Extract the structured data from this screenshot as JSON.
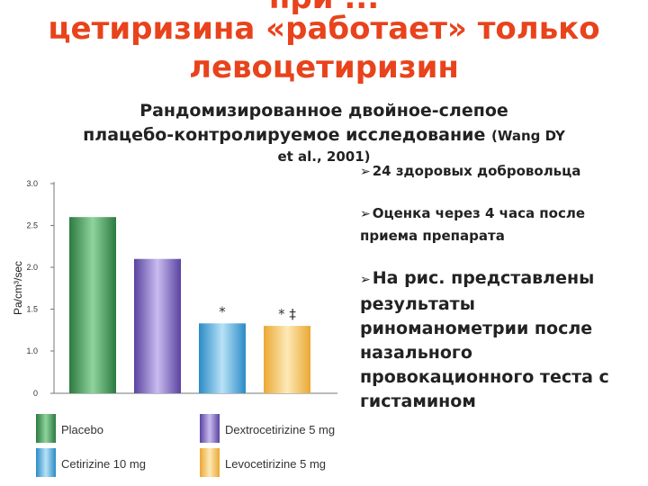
{
  "slide": {
    "title_line_partial": "при    ...",
    "title_line_1": "цетиризина «работает» только",
    "title_line_2": "левоцетиризин",
    "subtitle_line_1": "Рандомизированное двойное-слепое",
    "subtitle_line_2": "плацебо-контролируемое исследование",
    "citation_part_1": "(Wang DY",
    "citation_part_2": "et al., 2001)",
    "bullets": [
      "24 здоровых добровольца",
      "Оценка через  4 часа после приема препарата",
      "На рис. представлены результаты риноманометрии после назального провокационного теста с гистамином"
    ]
  },
  "chart_data": {
    "type": "bar",
    "categories": [
      "Placebo",
      "Dextrocetirizine 5 mg",
      "Cetirizine 10 mg",
      "Levocetirizine 5 mg"
    ],
    "values": [
      2.6,
      2.1,
      1.33,
      1.3
    ],
    "ylabel": "Pa/cm³/sec",
    "ylim": [
      0,
      3.0
    ],
    "yticks": [
      "0",
      "1.0",
      "1.5",
      "2.0",
      "2.5",
      "3.0"
    ],
    "annotations": [
      "",
      "",
      "*",
      "* ‡"
    ],
    "colors": [
      "#3f9a57",
      "#7b62b8",
      "#4aa6d9",
      "#f2c25a"
    ],
    "legend": [
      "Placebo",
      "Dextrocetirizine 5 mg",
      "Cetirizine 10 mg",
      "Levocetirizine 5 mg"
    ]
  }
}
